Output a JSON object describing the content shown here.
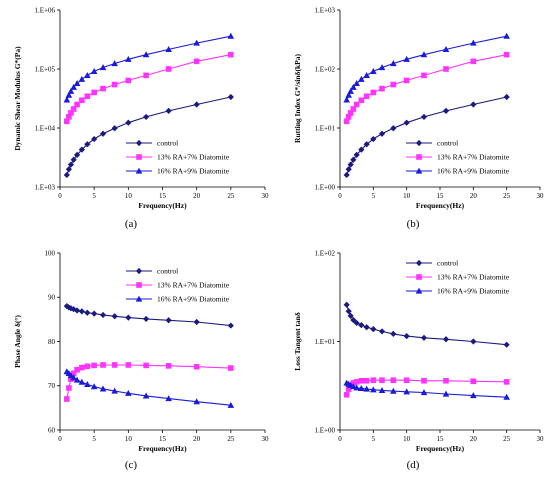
{
  "figure": {
    "colors": {
      "control": "#1a1a80",
      "ra13": "#ff33ff",
      "ra16": "#1a1ad9"
    }
  },
  "chart_data": [
    {
      "panel": "(a)",
      "type": "line",
      "ylabel": "Dynamic Shear Modulus G*(Pa)",
      "xlabel": "Frequency(Hz)",
      "yscale": "log",
      "ylim": [
        1000,
        1000000
      ],
      "yticks": [
        "1.E+03",
        "1.E+04",
        "1.E+05",
        "1.E+06"
      ],
      "xlim": [
        0,
        30
      ],
      "xticks": [
        "0",
        "5",
        "10",
        "15",
        "20",
        "25",
        "30"
      ],
      "legend_position": "bottom-right",
      "x": [
        1.0,
        1.3,
        1.6,
        2.0,
        2.5,
        3.2,
        4.0,
        5.0,
        6.3,
        8.0,
        10.0,
        12.6,
        15.9,
        20.0,
        25.0
      ],
      "series": [
        {
          "name": "control",
          "marker": "diamond",
          "color": "#1a1a80",
          "values": [
            1600,
            2000,
            2400,
            2900,
            3500,
            4300,
            5300,
            6500,
            8000,
            9900,
            12300,
            15400,
            19500,
            25000,
            33500
          ]
        },
        {
          "name": "13% RA+7% Diatomite",
          "marker": "square",
          "color": "#ff33ff",
          "values": [
            13000,
            15500,
            18000,
            21000,
            25000,
            29500,
            34500,
            40000,
            46500,
            54500,
            64000,
            78000,
            100000,
            135000,
            175000
          ]
        },
        {
          "name": "16% RA+9% Diatomite",
          "marker": "triangle",
          "color": "#1a1ad9",
          "values": [
            30000,
            36000,
            42000,
            49000,
            57000,
            67000,
            78000,
            91000,
            106000,
            124000,
            146000,
            175000,
            215000,
            275000,
            360000
          ]
        }
      ]
    },
    {
      "panel": "(b)",
      "type": "line",
      "ylabel": "Rutting Index G*/sinδ(kPa)",
      "xlabel": "Frequency(Hz)",
      "yscale": "log",
      "ylim": [
        1,
        1000
      ],
      "yticks": [
        "1.E+00",
        "1.E+01",
        "1.E+02",
        "1.E+03"
      ],
      "xlim": [
        0,
        30
      ],
      "xticks": [
        "0",
        "5",
        "10",
        "15",
        "20",
        "25",
        "30"
      ],
      "legend_position": "bottom-right",
      "x": [
        1.0,
        1.3,
        1.6,
        2.0,
        2.5,
        3.2,
        4.0,
        5.0,
        6.3,
        8.0,
        10.0,
        12.6,
        15.9,
        20.0,
        25.0
      ],
      "series": [
        {
          "name": "control",
          "marker": "diamond",
          "color": "#1a1a80",
          "values": [
            1.6,
            2.0,
            2.4,
            2.9,
            3.5,
            4.3,
            5.3,
            6.5,
            8.0,
            9.9,
            12.3,
            15.4,
            19.5,
            25.0,
            33.5
          ]
        },
        {
          "name": "13% RA+7% Diatomite",
          "marker": "square",
          "color": "#ff33ff",
          "values": [
            13.0,
            15.5,
            18.0,
            21.0,
            25.0,
            29.5,
            34.5,
            40.0,
            46.5,
            54.5,
            64.0,
            78.0,
            100.0,
            135.0,
            175.0
          ]
        },
        {
          "name": "16% RA+9% Diatomite",
          "marker": "triangle",
          "color": "#1a1ad9",
          "values": [
            30,
            36,
            42,
            49,
            57,
            67,
            78,
            91,
            106,
            124,
            146,
            175,
            215,
            275,
            360
          ]
        }
      ]
    },
    {
      "panel": "(c)",
      "type": "line",
      "ylabel": "Phase Angle δ(°)",
      "xlabel": "Frequency(Hz)",
      "yscale": "linear",
      "ylim": [
        60,
        100
      ],
      "yticks": [
        "60",
        "70",
        "80",
        "90",
        "100"
      ],
      "xlim": [
        0,
        30
      ],
      "xticks": [
        "0",
        "5",
        "10",
        "15",
        "20",
        "25",
        "30"
      ],
      "legend_position": "top-right",
      "x": [
        1.0,
        1.3,
        1.6,
        2.0,
        2.5,
        3.2,
        4.0,
        5.0,
        6.3,
        8.0,
        10.0,
        12.6,
        15.9,
        20.0,
        25.0
      ],
      "series": [
        {
          "name": "control",
          "marker": "diamond",
          "color": "#1a1a80",
          "values": [
            88.0,
            87.7,
            87.5,
            87.3,
            87.0,
            86.8,
            86.5,
            86.3,
            86.0,
            85.7,
            85.4,
            85.1,
            84.8,
            84.4,
            83.6
          ]
        },
        {
          "name": "13% RA+7% Diatomite",
          "marker": "square",
          "color": "#ff33ff",
          "values": [
            67.0,
            69.5,
            71.5,
            72.8,
            73.6,
            74.1,
            74.4,
            74.6,
            74.7,
            74.7,
            74.7,
            74.6,
            74.5,
            74.3,
            74.0
          ]
        },
        {
          "name": "16% RA+9% Diatomite",
          "marker": "triangle",
          "color": "#1a1ad9",
          "values": [
            73.2,
            72.8,
            72.3,
            71.8,
            71.3,
            70.8,
            70.3,
            69.8,
            69.3,
            68.8,
            68.3,
            67.7,
            67.1,
            66.4,
            65.6
          ]
        }
      ]
    },
    {
      "panel": "(d)",
      "type": "line",
      "ylabel": "Loss Tangent tanδ",
      "xlabel": "Frequency(Hz)",
      "yscale": "log",
      "ylim": [
        1,
        100
      ],
      "yticks": [
        "1.E+00",
        "1.E+01",
        "1.E+02"
      ],
      "xlim": [
        0,
        30
      ],
      "xticks": [
        "0",
        "5",
        "10",
        "15",
        "20",
        "25",
        "30"
      ],
      "legend_position": "top-right",
      "x": [
        1.0,
        1.3,
        1.6,
        2.0,
        2.5,
        3.2,
        4.0,
        5.0,
        6.3,
        8.0,
        10.0,
        12.6,
        15.9,
        20.0,
        25.0
      ],
      "series": [
        {
          "name": "control",
          "marker": "diamond",
          "color": "#1a1a80",
          "values": [
            26.0,
            22.0,
            19.5,
            17.5,
            16.2,
            15.3,
            14.5,
            13.8,
            13.0,
            12.2,
            11.5,
            11.0,
            10.6,
            10.0,
            9.2
          ]
        },
        {
          "name": "13% RA+7% Diatomite",
          "marker": "square",
          "color": "#ff33ff",
          "values": [
            2.5,
            2.9,
            3.2,
            3.4,
            3.5,
            3.6,
            3.6,
            3.65,
            3.65,
            3.65,
            3.65,
            3.6,
            3.6,
            3.55,
            3.5
          ]
        },
        {
          "name": "16% RA+9% Diatomite",
          "marker": "triangle",
          "color": "#1a1ad9",
          "values": [
            3.4,
            3.3,
            3.2,
            3.1,
            3.0,
            2.95,
            2.9,
            2.85,
            2.8,
            2.75,
            2.7,
            2.65,
            2.55,
            2.45,
            2.35
          ]
        }
      ]
    }
  ]
}
